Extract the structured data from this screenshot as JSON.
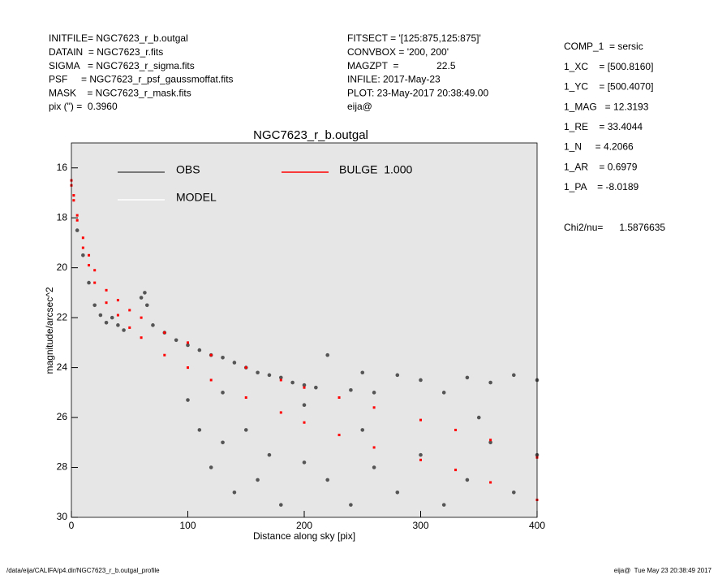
{
  "header": {
    "left": [
      "INITFILE= NGC7623_r_b.outgal",
      "DATAIN  = NGC7623_r.fits",
      "SIGMA   = NGC7623_r_sigma.fits",
      "PSF     = NGC7623_r_psf_gaussmoffat.fits",
      "MASK    = NGC7623_r_mask.fits",
      "pix (\") =  0.3960"
    ],
    "middle": [
      "FITSECT = '[125:875,125:875]'",
      "CONVBOX = '200, 200'",
      "MAGZPT  =              22.5",
      "INFILE: 2017-May-23",
      "PLOT: 23-May-2017 20:38:49.00",
      "eija@"
    ],
    "right": [
      "COMP_1  = sersic",
      "1_XC    = [500.8160]",
      "1_YC    = [500.4070]",
      "1_MAG   = 12.3193",
      "1_RE    = 33.4044",
      "1_N     = 4.2066",
      "1_AR    = 0.6979",
      "1_PA    = -8.0189"
    ],
    "chi2": "Chi2/nu=      1.5876635"
  },
  "footer": {
    "left": "/data/eija/CALIFA/p4.dir/NGC7623_r_b.outgal_profile",
    "right": "eija@  Tue May 23 20:38:49 2017"
  },
  "chart_data": {
    "type": "scatter",
    "title": "NGC7623_r_b.outgal",
    "xlabel": "Distance along sky [pix]",
    "ylabel": "magnitude/arcsec^2",
    "xlim": [
      0,
      400
    ],
    "ylim": [
      15,
      30
    ],
    "y_inverted": true,
    "xticks": [
      0,
      100,
      200,
      300,
      400
    ],
    "yticks": [
      16,
      18,
      20,
      22,
      24,
      26,
      28,
      30
    ],
    "series": [
      {
        "name": "OBS",
        "color": "#555555",
        "x": [
          5,
          10,
          15,
          20,
          25,
          30,
          35,
          40,
          45,
          60,
          63,
          65,
          70,
          80,
          90,
          100,
          100,
          110,
          110,
          120,
          120,
          130,
          130,
          140,
          140,
          150,
          150,
          160,
          160,
          170,
          170,
          180,
          180,
          190,
          200,
          200,
          210,
          220,
          220,
          240,
          240,
          250,
          260,
          260,
          280,
          280,
          300,
          300,
          320,
          320,
          340,
          340,
          360,
          360,
          380,
          380,
          400,
          400,
          130,
          250,
          350,
          200
        ],
        "values": [
          18.5,
          19.5,
          20.6,
          21.5,
          21.9,
          22.2,
          22.0,
          22.3,
          22.5,
          21.2,
          21.0,
          21.5,
          22.3,
          22.6,
          22.9,
          23.1,
          25.3,
          23.3,
          26.5,
          23.5,
          28.0,
          23.6,
          27.0,
          23.8,
          29.0,
          24.0,
          26.5,
          24.2,
          28.5,
          24.3,
          27.5,
          24.4,
          29.5,
          24.6,
          24.7,
          27.8,
          24.8,
          23.5,
          28.5,
          24.9,
          29.5,
          24.2,
          25.0,
          28.0,
          24.3,
          29.0,
          24.5,
          27.5,
          25.0,
          29.5,
          24.4,
          28.5,
          24.6,
          27.0,
          24.3,
          29.0,
          24.5,
          27.5,
          25.0,
          26.5,
          26.0,
          25.5
        ]
      },
      {
        "name": "MODEL",
        "color": "#ffffff",
        "x": [],
        "values": []
      },
      {
        "name": "BULGE  1.000",
        "color": "#ff0000",
        "x": [
          0,
          0,
          2,
          2,
          5,
          5,
          10,
          10,
          15,
          15,
          20,
          20,
          30,
          30,
          40,
          40,
          50,
          50,
          60,
          60,
          80,
          80,
          100,
          100,
          120,
          120,
          150,
          150,
          180,
          180,
          200,
          200,
          230,
          230,
          260,
          260,
          300,
          300,
          330,
          330,
          360,
          360,
          400,
          400
        ],
        "values": [
          16.5,
          16.7,
          17.1,
          17.3,
          17.9,
          18.1,
          18.8,
          19.2,
          19.5,
          19.9,
          20.1,
          20.6,
          20.9,
          21.4,
          21.3,
          21.9,
          21.7,
          22.4,
          22.0,
          22.8,
          22.6,
          23.5,
          23.0,
          24.0,
          23.5,
          24.5,
          24.0,
          25.2,
          24.5,
          25.8,
          24.8,
          26.2,
          25.2,
          26.7,
          25.6,
          27.2,
          26.1,
          27.7,
          26.5,
          28.1,
          26.9,
          28.6,
          27.6,
          29.3
        ]
      }
    ]
  }
}
